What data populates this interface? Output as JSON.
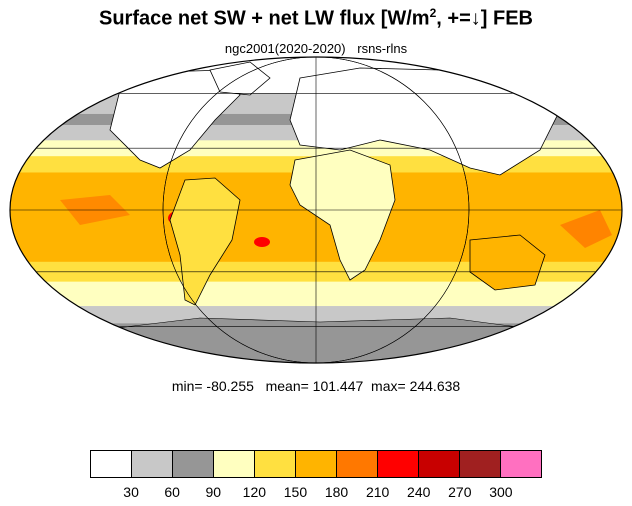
{
  "title": {
    "main": "Surface net SW + net LW flux [W/m",
    "sup": "2",
    "tail": ", +=↓]  FEB"
  },
  "subtitle": {
    "left": "ngc2001(2020-2020)",
    "right": "rsns-rlns"
  },
  "stats": {
    "text": "min= -80.255   mean= 101.447  max= 244.638"
  },
  "colorbar": {
    "colors": [
      "#ffffff",
      "#c8c8c8",
      "#969696",
      "#ffffc0",
      "#ffe040",
      "#ffb400",
      "#ff7800",
      "#ff0000",
      "#c80000",
      "#a02020",
      "#ff70c0"
    ],
    "ticks": [
      "30",
      "60",
      "90",
      "120",
      "150",
      "180",
      "210",
      "240",
      "270",
      "300"
    ]
  },
  "map": {
    "projection": "Mollweide",
    "bands": [
      {
        "lat_from": 90,
        "lat_to": 60,
        "color": "#ffffff"
      },
      {
        "lat_from": 60,
        "lat_to": 48,
        "color": "#c8c8c8"
      },
      {
        "lat_from": 48,
        "lat_to": 42,
        "color": "#969696"
      },
      {
        "lat_from": 42,
        "lat_to": 34,
        "color": "#c8c8c8"
      },
      {
        "lat_from": 34,
        "lat_to": 26,
        "color": "#ffffc0"
      },
      {
        "lat_from": 26,
        "lat_to": 18,
        "color": "#ffe040"
      },
      {
        "lat_from": 18,
        "lat_to": -5,
        "color": "#ffb400"
      },
      {
        "lat_from": -5,
        "lat_to": -25,
        "color": "#ffb400"
      },
      {
        "lat_from": -25,
        "lat_to": -35,
        "color": "#ffe040"
      },
      {
        "lat_from": -35,
        "lat_to": -48,
        "color": "#ffffc0"
      },
      {
        "lat_from": -48,
        "lat_to": -58,
        "color": "#c8c8c8"
      },
      {
        "lat_from": -58,
        "lat_to": -90,
        "color": "#969696"
      }
    ]
  }
}
